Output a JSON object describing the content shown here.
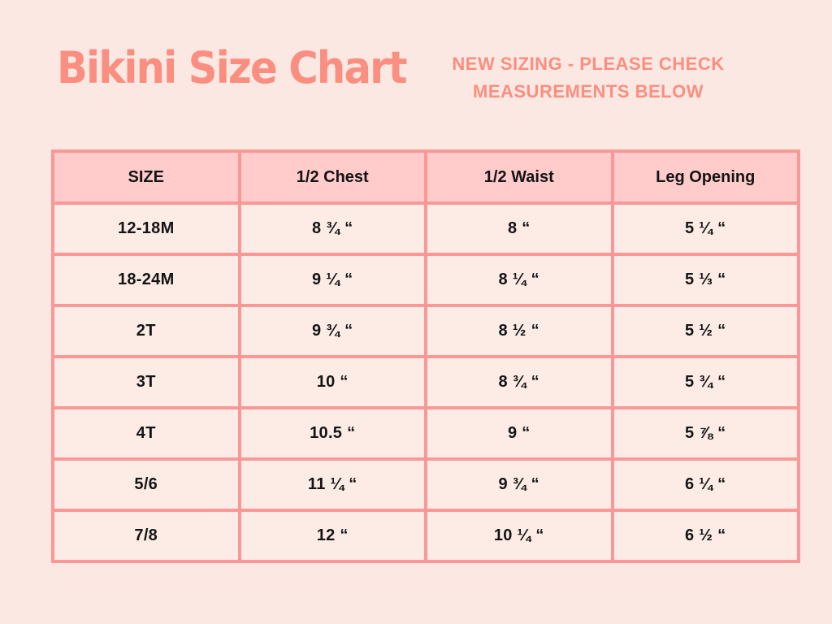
{
  "header": {
    "title": "Bikini Size Chart",
    "subtitle": "NEW SIZING - PLEASE CHECK MEASUREMENTS BELOW",
    "subtitle_line1": "NEW SIZING - PLEASE CHECK",
    "subtitle_line2": "MEASUREMENTS BELOW"
  },
  "colors": {
    "page_background": "#FCE8E2",
    "accent_coral": "#FA8E80",
    "table_border": "#F99896",
    "header_row_background": "#FFCBCB",
    "data_row_background": "#FDECE6",
    "cell_text": "#141414"
  },
  "chart_data": {
    "type": "table",
    "title": "Bikini Size Chart",
    "columns": [
      "SIZE",
      "1/2 Chest",
      "1/2 Waist",
      "Leg Opening"
    ],
    "rows": [
      [
        "12-18M",
        "8 ¾ “",
        "8 “",
        "5 ¼ “"
      ],
      [
        "18-24M",
        "9 ¼ “",
        "8 ¼ “",
        "5 ⅓ “"
      ],
      [
        "2T",
        "9 ¾ “",
        "8 ½ “",
        "5 ½ “"
      ],
      [
        "3T",
        "10 “",
        "8 ¾ “",
        "5 ¾ “"
      ],
      [
        "4T",
        "10.5 “",
        "9 “",
        "5 ⅞ “"
      ],
      [
        "5/6",
        "11 ¼ “",
        "9 ¾ “",
        "6 ¼ “"
      ],
      [
        "7/8",
        "12 “",
        "10 ¼ “",
        "6 ½ “"
      ]
    ]
  }
}
